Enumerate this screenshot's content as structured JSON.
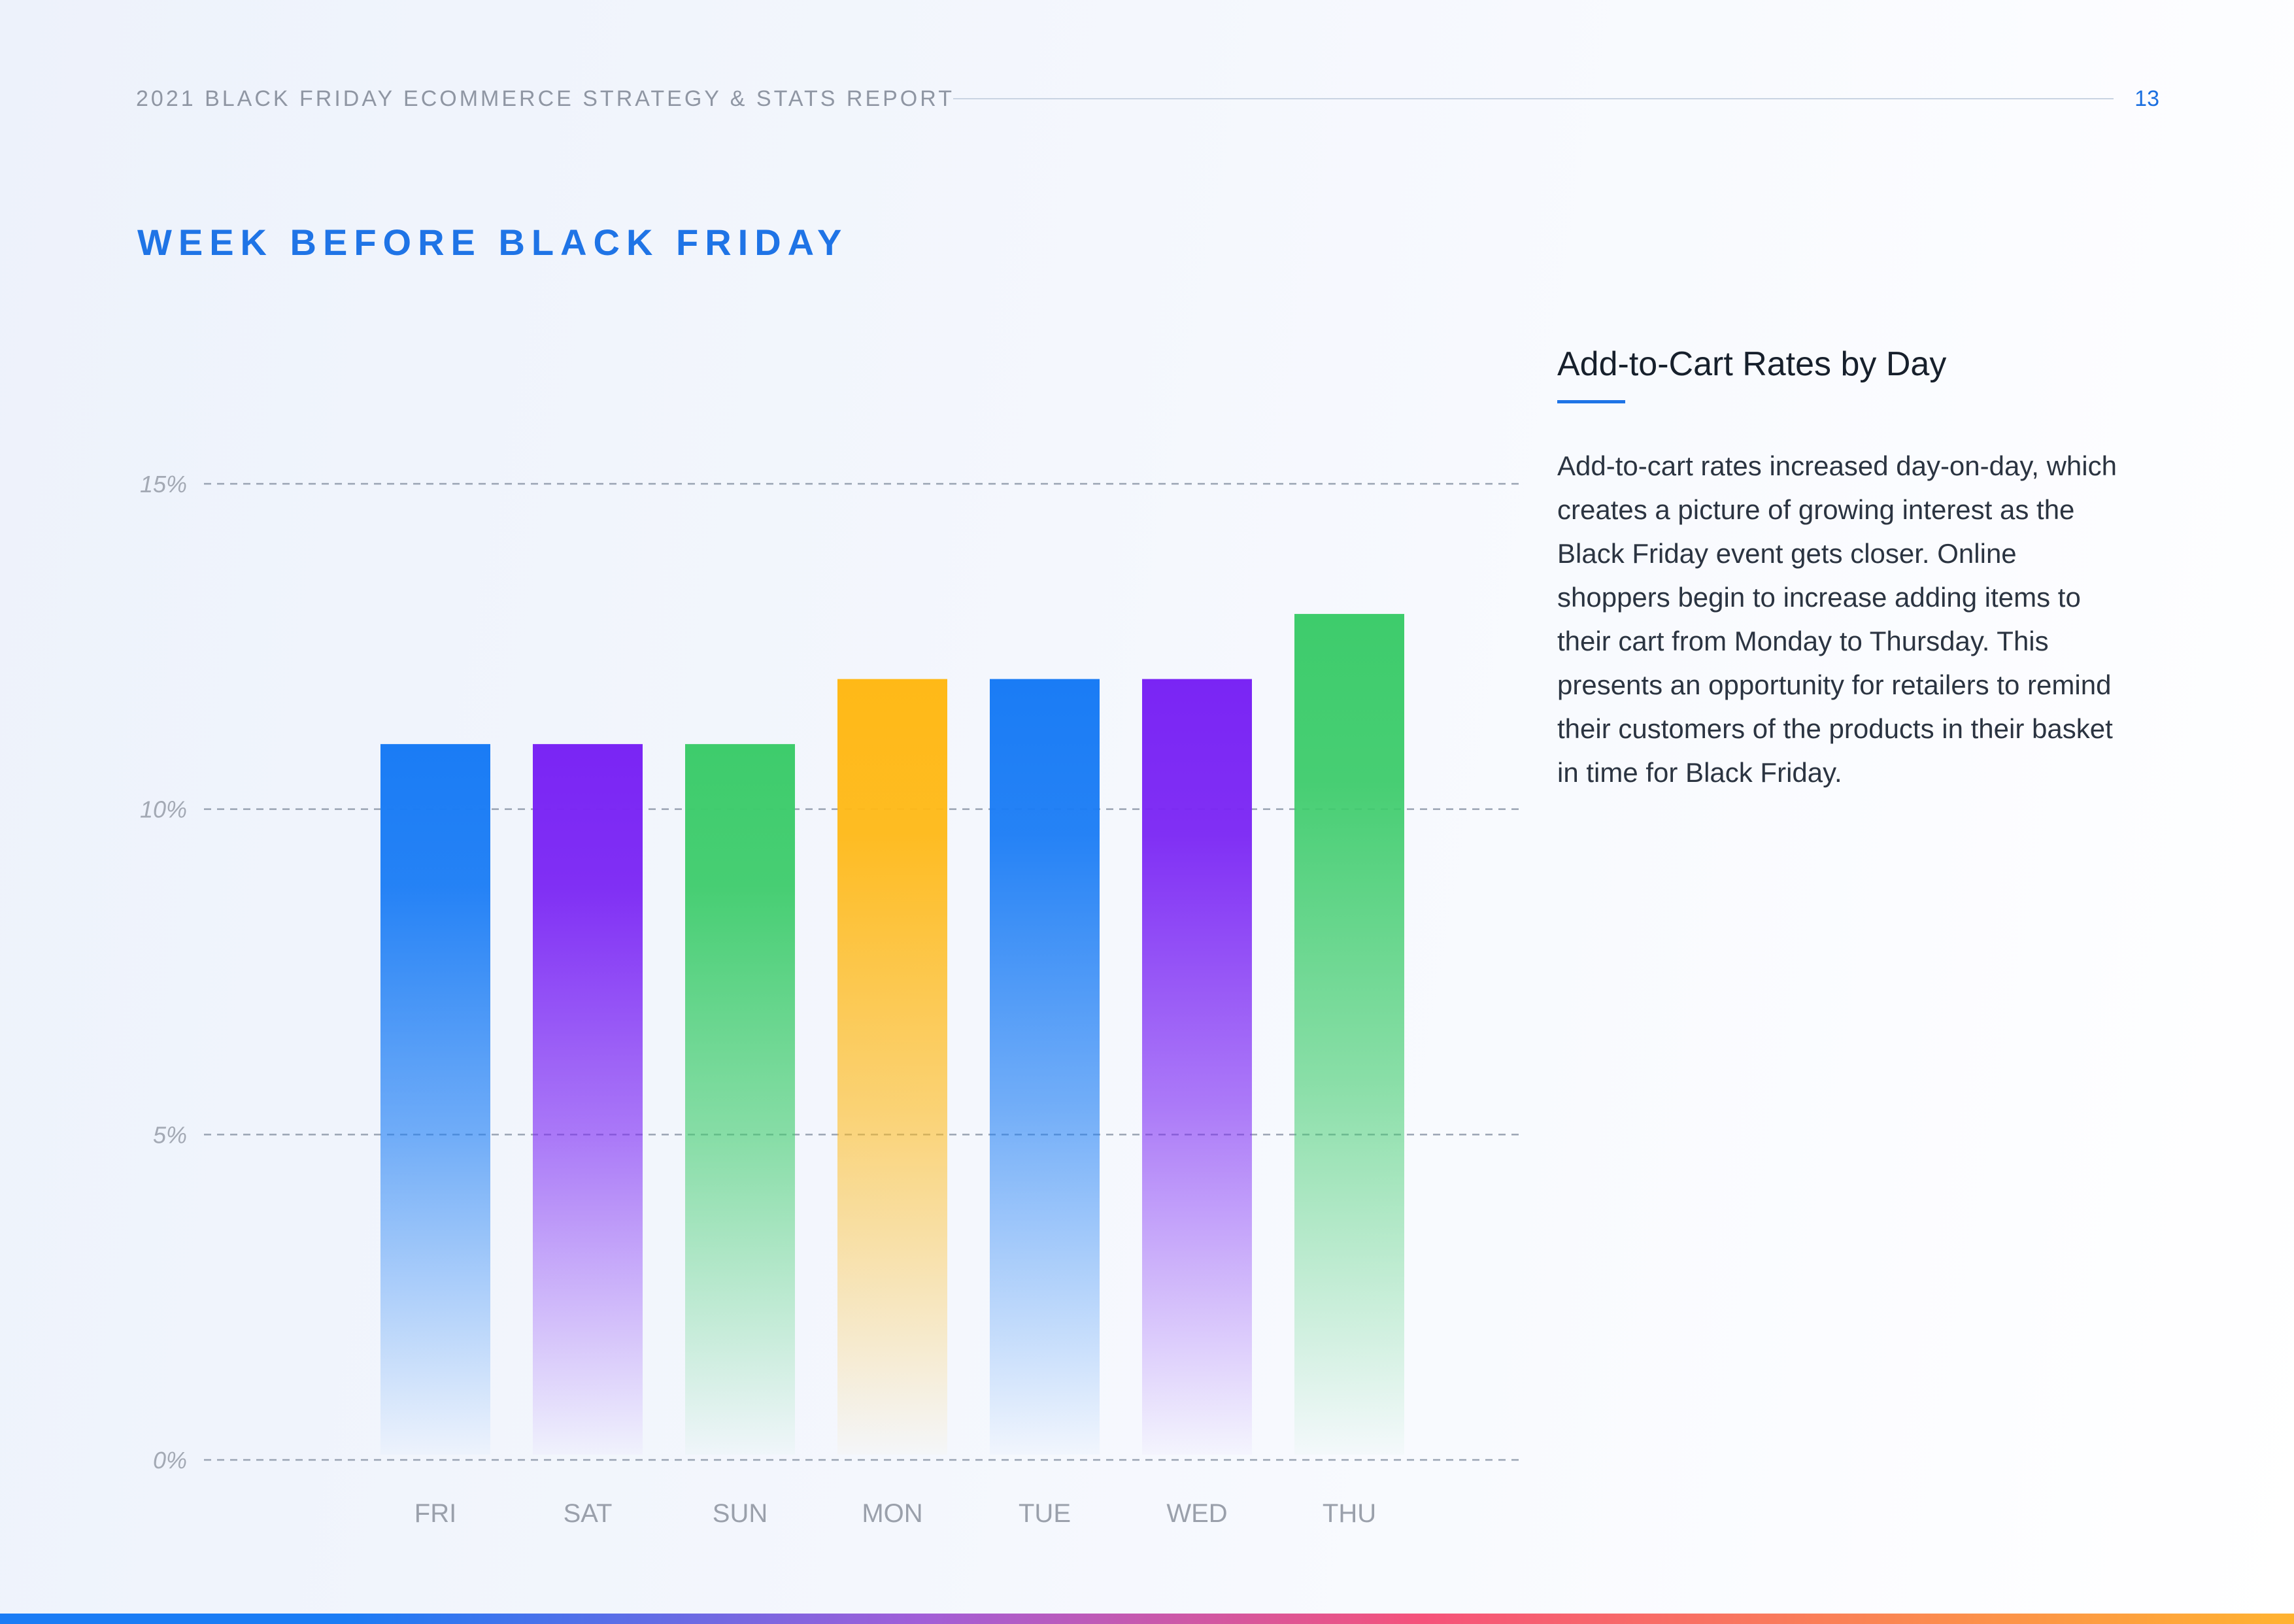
{
  "header": {
    "report_title": "2021 BLACK FRIDAY ECOMMERCE STRATEGY & STATS REPORT",
    "page_number": "13"
  },
  "section_title": "WEEK BEFORE BLACK FRIDAY",
  "side_panel": {
    "title": "Add-to-Cart Rates by Day",
    "body": "Add-to-cart rates increased day-on-day, which creates a picture of growing interest as the Black Friday event gets closer. Online shoppers begin to increase adding items to their cart from Monday to Thursday. This presents an opportunity for retailers to remind their customers of the products in their basket in time for Black Friday."
  },
  "colors": {
    "accent": "#1f74e6",
    "blue": "#1a7cf5",
    "purple": "#7a25f4",
    "green": "#3ecc6c",
    "yellow": "#ffb917"
  },
  "chart_data": {
    "type": "bar",
    "categories": [
      "FRI",
      "SAT",
      "SUN",
      "MON",
      "TUE",
      "WED",
      "THU"
    ],
    "values": [
      11,
      11,
      11,
      12,
      12,
      12,
      13
    ],
    "bar_colors": [
      "#1a7cf5",
      "#7a25f4",
      "#3ecc6c",
      "#ffb917",
      "#1a7cf5",
      "#7a25f4",
      "#3ecc6c"
    ],
    "yticks": [
      "0%",
      "5%",
      "10%",
      "15%"
    ],
    "ylim": [
      0,
      15
    ],
    "grid": true
  }
}
